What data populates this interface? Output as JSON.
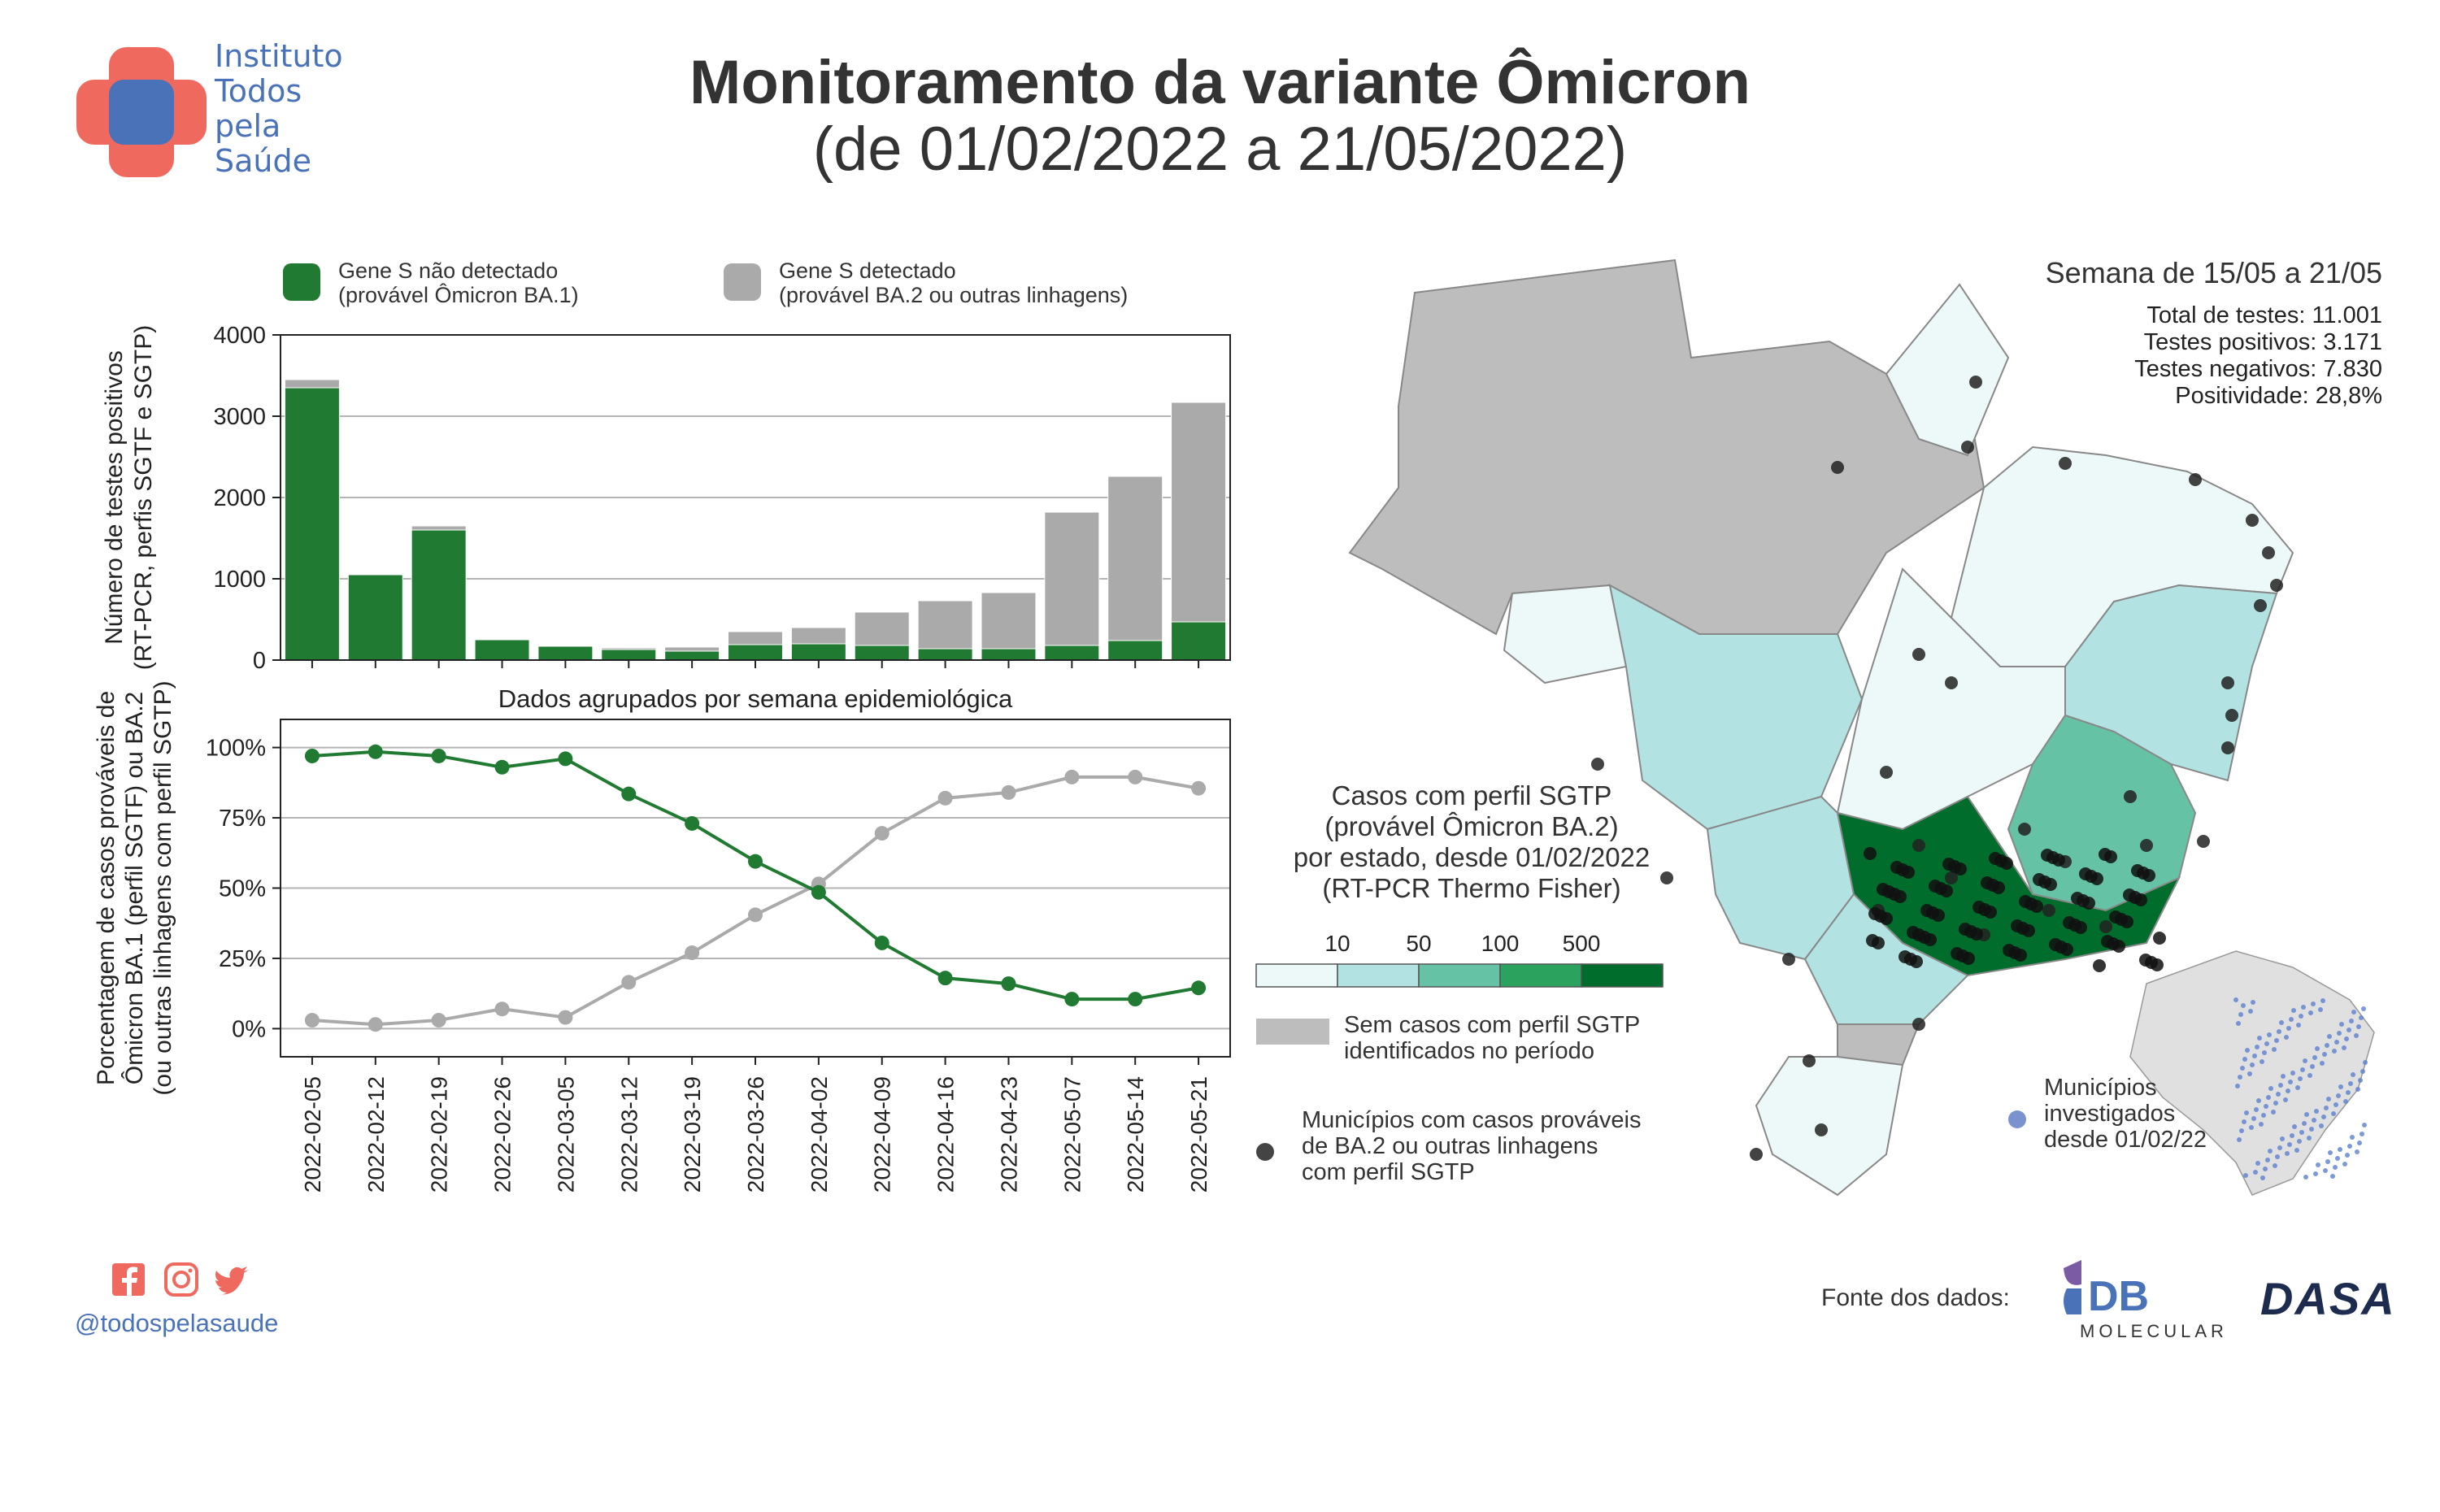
{
  "header": {
    "title_line1": "Monitoramento da variante Ômicron",
    "title_line2": "(de 01/02/2022 a 21/05/2022)"
  },
  "logo": {
    "lines": [
      "Instituto",
      "Todos",
      "pela",
      "Saúde"
    ],
    "colors": {
      "cross": "#f0695f",
      "center": "#4a72b8"
    }
  },
  "legend_top": {
    "ba1_line1": "Gene S não detectado",
    "ba1_line2": "(provável Ômicron BA.1)",
    "ba2_line1": "Gene S detectado",
    "ba2_line2": "(provável BA.2 ou outras linhagens)"
  },
  "chart_data": [
    {
      "type": "bar",
      "stacked": true,
      "ylabel_line1": "Número de testes positivos",
      "ylabel_line2": "(RT-PCR, perfis SGTF e SGTP)",
      "ylim": [
        0,
        4000
      ],
      "yticks": [
        "0",
        "1000",
        "2000",
        "3000",
        "4000"
      ],
      "grid": true,
      "categories": [
        "2022-02-05",
        "2022-02-12",
        "2022-02-19",
        "2022-02-26",
        "2022-03-05",
        "2022-03-12",
        "2022-03-19",
        "2022-03-26",
        "2022-04-02",
        "2022-04-09",
        "2022-04-16",
        "2022-04-23",
        "2022-05-07",
        "2022-05-14",
        "2022-05-21"
      ],
      "series": [
        {
          "name": "Gene S não detectado (provável Ômicron BA.1)",
          "color": "#217a32",
          "values": [
            3350,
            1050,
            1600,
            250,
            170,
            130,
            110,
            190,
            200,
            180,
            140,
            140,
            180,
            240,
            470
          ]
        },
        {
          "name": "Gene S detectado (provável BA.2 ou outras linhagens)",
          "color": "#aaaaaa",
          "values": [
            100,
            10,
            50,
            0,
            0,
            20,
            50,
            160,
            200,
            410,
            590,
            690,
            1640,
            2020,
            2700
          ]
        }
      ],
      "annotation": "Dados agrupados por semana epidemiológica"
    },
    {
      "type": "line",
      "ylabel_line1": "Porcentagem de casos prováveis de",
      "ylabel_line2": "Ômicron BA.1 (perfil SGTF) ou BA.2",
      "ylabel_line3": "(ou outras linhagens com perfil SGTP)",
      "ylim": [
        -0.1,
        1.1
      ],
      "yticks": [
        {
          "value": 0,
          "label": "0%"
        },
        {
          "value": 0.25,
          "label": "25%"
        },
        {
          "value": 0.5,
          "label": "50%"
        },
        {
          "value": 0.75,
          "label": "75%"
        },
        {
          "value": 1,
          "label": "100%"
        }
      ],
      "grid": true,
      "x": [
        "2022-02-05",
        "2022-02-12",
        "2022-02-19",
        "2022-02-26",
        "2022-03-05",
        "2022-03-12",
        "2022-03-19",
        "2022-03-26",
        "2022-04-02",
        "2022-04-09",
        "2022-04-16",
        "2022-04-23",
        "2022-05-07",
        "2022-05-14",
        "2022-05-21"
      ],
      "series": [
        {
          "name": "Gene S não detectado (provável Ômicron BA.1)",
          "color": "#217a32",
          "values": [
            0.97,
            0.985,
            0.97,
            0.93,
            0.96,
            0.835,
            0.73,
            0.595,
            0.485,
            0.305,
            0.18,
            0.16,
            0.105,
            0.105,
            0.145
          ]
        },
        {
          "name": "Gene S detectado (provável BA.2 ou outras linhagens)",
          "color": "#aaaaaa",
          "values": [
            0.03,
            0.015,
            0.03,
            0.07,
            0.04,
            0.165,
            0.27,
            0.405,
            0.515,
            0.695,
            0.82,
            0.84,
            0.895,
            0.895,
            0.855
          ]
        }
      ]
    }
  ],
  "map": {
    "week_title": "Semana de 15/05 a 21/05",
    "stats": [
      {
        "label": "Total de testes:",
        "value": "11.001"
      },
      {
        "label": "Testes positivos:",
        "value": "3.171"
      },
      {
        "label": "Testes negativos:",
        "value": "7.830"
      },
      {
        "label": "Positividade:",
        "value": "28,8%"
      }
    ],
    "legend_title": [
      "Casos com perfil SGTP",
      "(provável Ômicron BA.2)",
      "por estado, desde 01/02/2022",
      "(RT-PCR Thermo Fisher)"
    ],
    "scale_ticks": [
      "10",
      "50",
      "100",
      "500"
    ],
    "scale_colors": [
      "#edf8f8",
      "#b2e2e2",
      "#66c2a4",
      "#2ca25f",
      "#006d2c"
    ],
    "no_cases_color": "#bdbdbd",
    "no_cases_label": [
      "Sem casos com perfil SGTP",
      "identificados no período"
    ],
    "dots_label": [
      "Municípios com casos prováveis",
      "de BA.2 ou outras linhagens",
      "com perfil SGTP"
    ],
    "investigated_label": [
      "Municípios",
      "investigados",
      "desde 01/02/22"
    ]
  },
  "footer": {
    "handle": "@todospelasaude",
    "source_label": "Fonte dos dados:",
    "partner1": "DB",
    "partner1_sub": "MOLECULAR",
    "partner2": "DASA"
  }
}
